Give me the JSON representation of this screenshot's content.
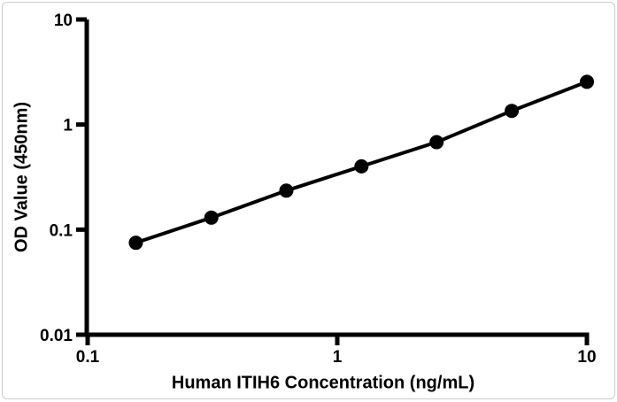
{
  "page": {
    "background": "#ffffff",
    "card_border_color": "#cccccc"
  },
  "chart_data": {
    "type": "line",
    "title": "",
    "xlabel": "Human ITIH6 Concentration (ng/mL)",
    "ylabel": "OD Value (450nm)",
    "xscale": "log",
    "yscale": "log",
    "xlim": [
      0.1,
      10
    ],
    "ylim": [
      0.01,
      10
    ],
    "xticks": [
      0.1,
      1,
      10
    ],
    "xtick_labels": [
      "0.1",
      "1",
      "10"
    ],
    "yticks": [
      10,
      1,
      0.1,
      0.01
    ],
    "ytick_labels": [
      "10",
      "1",
      "0.1",
      "0.01"
    ],
    "grid": false,
    "legend": "none",
    "axis_color": "#000000",
    "series": [
      {
        "x": [
          0.156,
          0.313,
          0.625,
          1.25,
          2.5,
          5,
          10
        ],
        "y": [
          0.075,
          0.13,
          0.235,
          0.4,
          0.68,
          1.35,
          2.55
        ],
        "marker": "filled-circle",
        "color": "#000000"
      }
    ]
  }
}
